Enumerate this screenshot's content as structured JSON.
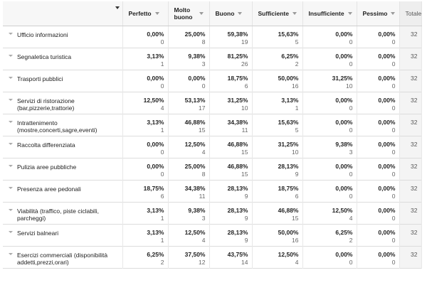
{
  "columns": [
    "Perfetto",
    "Molto buono",
    "Buono",
    "Sufficiente",
    "Insufficiente",
    "Pessimo"
  ],
  "total_header": "Totale",
  "rows": [
    {
      "label": "Ufficio informazioni",
      "cells": [
        [
          "0,00%",
          "0"
        ],
        [
          "25,00%",
          "8"
        ],
        [
          "59,38%",
          "19"
        ],
        [
          "15,63%",
          "5"
        ],
        [
          "0,00%",
          "0"
        ],
        [
          "0,00%",
          "0"
        ]
      ],
      "total": "32"
    },
    {
      "label": "Segnaletica turistica",
      "cells": [
        [
          "3,13%",
          "1"
        ],
        [
          "9,38%",
          "3"
        ],
        [
          "81,25%",
          "26"
        ],
        [
          "6,25%",
          "2"
        ],
        [
          "0,00%",
          "0"
        ],
        [
          "0,00%",
          "0"
        ]
      ],
      "total": "32"
    },
    {
      "label": "Trasporti pubblici",
      "cells": [
        [
          "0,00%",
          "0"
        ],
        [
          "0,00%",
          "0"
        ],
        [
          "18,75%",
          "6"
        ],
        [
          "50,00%",
          "16"
        ],
        [
          "31,25%",
          "10"
        ],
        [
          "0,00%",
          "0"
        ]
      ],
      "total": "32"
    },
    {
      "label": "Servizi di ristorazione (bar,pizzerie,trattorie)",
      "cells": [
        [
          "12,50%",
          "4"
        ],
        [
          "53,13%",
          "17"
        ],
        [
          "31,25%",
          "10"
        ],
        [
          "3,13%",
          "1"
        ],
        [
          "0,00%",
          "0"
        ],
        [
          "0,00%",
          "0"
        ]
      ],
      "total": "32"
    },
    {
      "label": "Intrattenimento (mostre,concerti,sagre,eventi)",
      "cells": [
        [
          "3,13%",
          "1"
        ],
        [
          "46,88%",
          "15"
        ],
        [
          "34,38%",
          "11"
        ],
        [
          "15,63%",
          "5"
        ],
        [
          "0,00%",
          "0"
        ],
        [
          "0,00%",
          "0"
        ]
      ],
      "total": "32"
    },
    {
      "label": "Raccolta differenziata",
      "cells": [
        [
          "0,00%",
          "0"
        ],
        [
          "12,50%",
          "4"
        ],
        [
          "46,88%",
          "15"
        ],
        [
          "31,25%",
          "10"
        ],
        [
          "9,38%",
          "3"
        ],
        [
          "0,00%",
          "0"
        ]
      ],
      "total": "32"
    },
    {
      "label": "Pulizia aree pubbliche",
      "cells": [
        [
          "0,00%",
          "0"
        ],
        [
          "25,00%",
          "8"
        ],
        [
          "46,88%",
          "15"
        ],
        [
          "28,13%",
          "9"
        ],
        [
          "0,00%",
          "0"
        ],
        [
          "0,00%",
          "0"
        ]
      ],
      "total": "32"
    },
    {
      "label": "Presenza aree pedonali",
      "cells": [
        [
          "18,75%",
          "6"
        ],
        [
          "34,38%",
          "11"
        ],
        [
          "28,13%",
          "9"
        ],
        [
          "18,75%",
          "6"
        ],
        [
          "0,00%",
          "0"
        ],
        [
          "0,00%",
          "0"
        ]
      ],
      "total": "32"
    },
    {
      "label": "Viabilità (traffico, piste ciclabili, parcheggi)",
      "cells": [
        [
          "3,13%",
          "1"
        ],
        [
          "9,38%",
          "3"
        ],
        [
          "28,13%",
          "9"
        ],
        [
          "46,88%",
          "15"
        ],
        [
          "12,50%",
          "4"
        ],
        [
          "0,00%",
          "0"
        ]
      ],
      "total": "32"
    },
    {
      "label": "Servizi balneari",
      "cells": [
        [
          "3,13%",
          "1"
        ],
        [
          "12,50%",
          "4"
        ],
        [
          "28,13%",
          "9"
        ],
        [
          "50,00%",
          "16"
        ],
        [
          "6,25%",
          "2"
        ],
        [
          "0,00%",
          "0"
        ]
      ],
      "total": "32"
    },
    {
      "label": "Esercizi commerciali (disponibilità addetti,prezzi,orari)",
      "cells": [
        [
          "6,25%",
          "2"
        ],
        [
          "37,50%",
          "12"
        ],
        [
          "43,75%",
          "14"
        ],
        [
          "12,50%",
          "4"
        ],
        [
          "0,00%",
          "0"
        ],
        [
          "0,00%",
          "0"
        ]
      ],
      "total": "32"
    }
  ]
}
